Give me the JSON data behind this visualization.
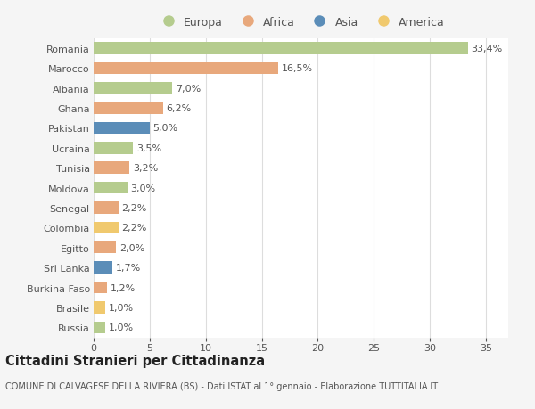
{
  "countries": [
    "Romania",
    "Marocco",
    "Albania",
    "Ghana",
    "Pakistan",
    "Ucraina",
    "Tunisia",
    "Moldova",
    "Senegal",
    "Colombia",
    "Egitto",
    "Sri Lanka",
    "Burkina Faso",
    "Brasile",
    "Russia"
  ],
  "values": [
    33.4,
    16.5,
    7.0,
    6.2,
    5.0,
    3.5,
    3.2,
    3.0,
    2.2,
    2.2,
    2.0,
    1.7,
    1.2,
    1.0,
    1.0
  ],
  "labels": [
    "33,4%",
    "16,5%",
    "7,0%",
    "6,2%",
    "5,0%",
    "3,5%",
    "3,2%",
    "3,0%",
    "2,2%",
    "2,2%",
    "2,0%",
    "1,7%",
    "1,2%",
    "1,0%",
    "1,0%"
  ],
  "continents": [
    "Europa",
    "Africa",
    "Europa",
    "Africa",
    "Asia",
    "Europa",
    "Africa",
    "Europa",
    "Africa",
    "America",
    "Africa",
    "Asia",
    "Africa",
    "America",
    "Europa"
  ],
  "continent_colors": {
    "Europa": "#b5cc8e",
    "Africa": "#e8a87c",
    "Asia": "#5b8db8",
    "America": "#f0c96e"
  },
  "legend_order": [
    "Europa",
    "Africa",
    "Asia",
    "America"
  ],
  "title": "Cittadini Stranieri per Cittadinanza",
  "subtitle": "COMUNE DI CALVAGESE DELLA RIVIERA (BS) - Dati ISTAT al 1° gennaio - Elaborazione TUTTITALIA.IT",
  "bg_color": "#f5f5f5",
  "plot_bg_color": "#ffffff",
  "xlim": [
    0,
    37
  ],
  "xticks": [
    0,
    5,
    10,
    15,
    20,
    25,
    30,
    35
  ],
  "grid_color": "#dddddd",
  "bar_height": 0.6,
  "label_fontsize": 8,
  "tick_fontsize": 8,
  "title_fontsize": 10.5,
  "subtitle_fontsize": 7
}
